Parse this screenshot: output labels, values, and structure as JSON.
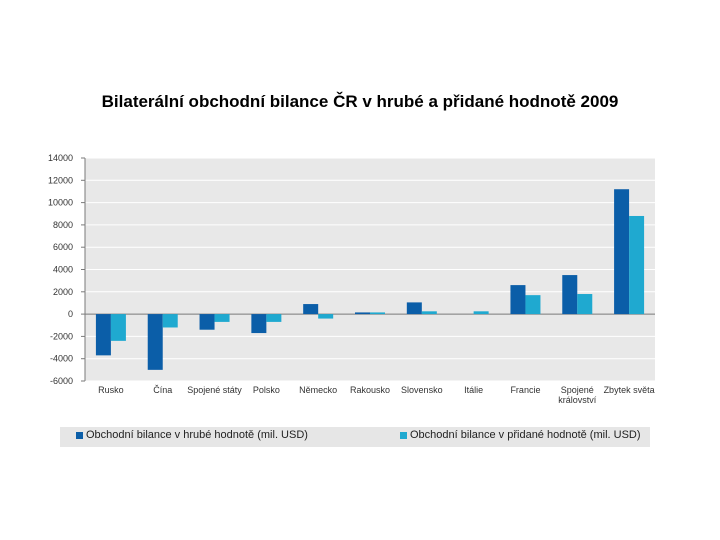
{
  "title": "Bilaterální obchodní bilance ČR v hrubé a přidané hodnotě 2009",
  "colors": {
    "series1": "#0b5ea8",
    "series2": "#1fa9d0",
    "plot_bg": "#e8e8e8",
    "grid": "#ffffff"
  },
  "chart_data": {
    "type": "bar",
    "title": "",
    "xlabel": "",
    "ylabel": "",
    "ylim": [
      -6000,
      14000
    ],
    "yticks": [
      14000,
      12000,
      10000,
      8000,
      6000,
      4000,
      2000,
      0,
      -2000,
      -4000,
      -6000
    ],
    "ytick_labels": [
      "14000",
      "12000",
      "10000",
      "8000",
      "6000",
      "4000",
      "2000",
      "0",
      "-2000",
      "-4000",
      "-6000"
    ],
    "categories": [
      [
        "Rusko"
      ],
      [
        "Čína"
      ],
      [
        "Spojené státy"
      ],
      [
        "Polsko"
      ],
      [
        "Německo"
      ],
      [
        "Rakousko"
      ],
      [
        "Slovensko"
      ],
      [
        "Itálie"
      ],
      [
        "Francie"
      ],
      [
        "Spojené",
        "království"
      ],
      [
        "Zbytek světa"
      ]
    ],
    "grid": true,
    "legend_position": "bottom",
    "series": [
      {
        "name": "Obchodní bilance v hrubé hodnotě (mil. USD)",
        "values": [
          -3700,
          -5000,
          -1400,
          -1700,
          900,
          150,
          1050,
          0,
          2600,
          3500,
          11200
        ]
      },
      {
        "name": "Obchodní bilance v přidané hodnotě (mil. USD)",
        "values": [
          -2400,
          -1200,
          -700,
          -700,
          -400,
          150,
          250,
          250,
          1700,
          1800,
          8800
        ]
      }
    ]
  }
}
